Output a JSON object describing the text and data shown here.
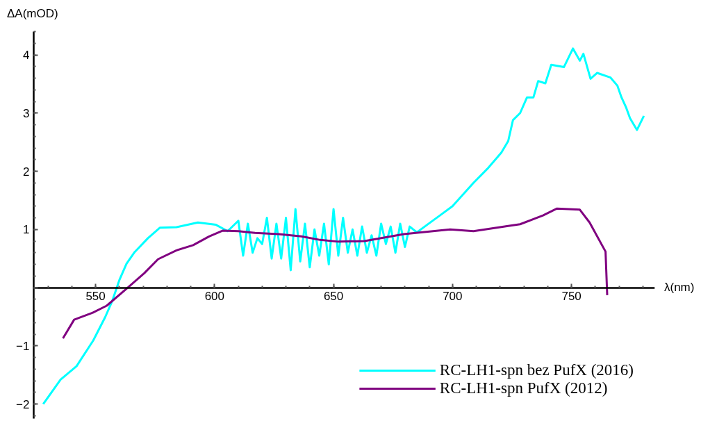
{
  "chart_data": {
    "type": "line",
    "xlabel": "λ(nm)",
    "ylabel": "ΔA(mOD)",
    "xlim": [
      524,
      785
    ],
    "ylim": [
      -2.25,
      4.4
    ],
    "xticks": [
      550,
      600,
      650,
      700,
      750
    ],
    "yticks": [
      {
        "value": -2,
        "label": "−2"
      },
      {
        "value": -1,
        "label": "−1"
      },
      {
        "value": 0,
        "label": null
      },
      1,
      2,
      3,
      4
    ],
    "grid": false,
    "legend": "bottom right",
    "series": [
      {
        "name": "RC-LH1-spn bez PufX (2016)",
        "color": "#00ffff",
        "x": [
          528,
          535.3,
          542,
          549,
          554,
          557,
          560,
          563,
          566.4,
          572,
          577,
          584,
          593,
          600.6,
          605.5,
          610,
          612,
          614,
          616,
          618,
          620,
          622,
          624,
          626,
          628,
          630,
          632,
          634,
          636,
          638,
          640,
          642,
          644,
          646,
          648,
          650,
          652,
          654,
          656,
          658,
          660,
          662,
          664,
          666,
          668,
          670,
          672,
          674,
          676,
          678,
          680,
          682,
          685,
          690,
          695,
          700,
          708.8,
          714.6,
          720.5,
          723.4,
          725.4,
          728.4,
          731.3,
          734,
          736,
          739,
          741.5,
          746.8,
          750.6,
          753.5,
          755,
          758,
          760.8,
          766.4,
          769.3,
          771,
          773,
          774.6,
          777.5,
          780.4
        ],
        "values": [
          -2.0,
          -1.58,
          -1.35,
          -0.91,
          -0.51,
          -0.23,
          0.13,
          0.41,
          0.61,
          0.85,
          1.03,
          1.04,
          1.12,
          1.08,
          0.97,
          1.15,
          0.55,
          1.1,
          0.6,
          0.85,
          0.75,
          1.2,
          0.5,
          1.1,
          0.5,
          1.2,
          0.3,
          1.35,
          0.45,
          1.1,
          0.35,
          1.0,
          0.55,
          1.1,
          0.4,
          1.35,
          0.55,
          1.2,
          0.6,
          1.0,
          0.55,
          1.05,
          0.6,
          0.9,
          0.55,
          1.1,
          0.75,
          1.05,
          0.6,
          1.1,
          0.7,
          1.05,
          0.95,
          1.1,
          1.25,
          1.4,
          1.8,
          2.04,
          2.32,
          2.52,
          2.88,
          3.0,
          3.27,
          3.27,
          3.55,
          3.51,
          3.83,
          3.79,
          4.11,
          3.9,
          4.02,
          3.59,
          3.69,
          3.61,
          3.47,
          3.27,
          3.09,
          2.91,
          2.71,
          2.95
        ]
      },
      {
        "name": "RC-LH1-spn PufX (2012)",
        "color": "#800080",
        "x": [
          536.3,
          541,
          548.8,
          554.7,
          563.5,
          570.5,
          576.3,
          584,
          591,
          597.7,
          603.5,
          610,
          617,
          627,
          636.5,
          644.4,
          652,
          663,
          679.5,
          699,
          708.8,
          723.4,
          728.4,
          738,
          743.9,
          753.5,
          757.6,
          764.3,
          765
        ],
        "values": [
          -0.87,
          -0.55,
          -0.43,
          -0.31,
          0.0,
          0.25,
          0.49,
          0.64,
          0.73,
          0.88,
          0.98,
          0.97,
          0.94,
          0.92,
          0.88,
          0.82,
          0.79,
          0.8,
          0.92,
          1.0,
          0.97,
          1.06,
          1.09,
          1.24,
          1.36,
          1.34,
          1.12,
          0.62,
          -0.13
        ]
      }
    ]
  }
}
